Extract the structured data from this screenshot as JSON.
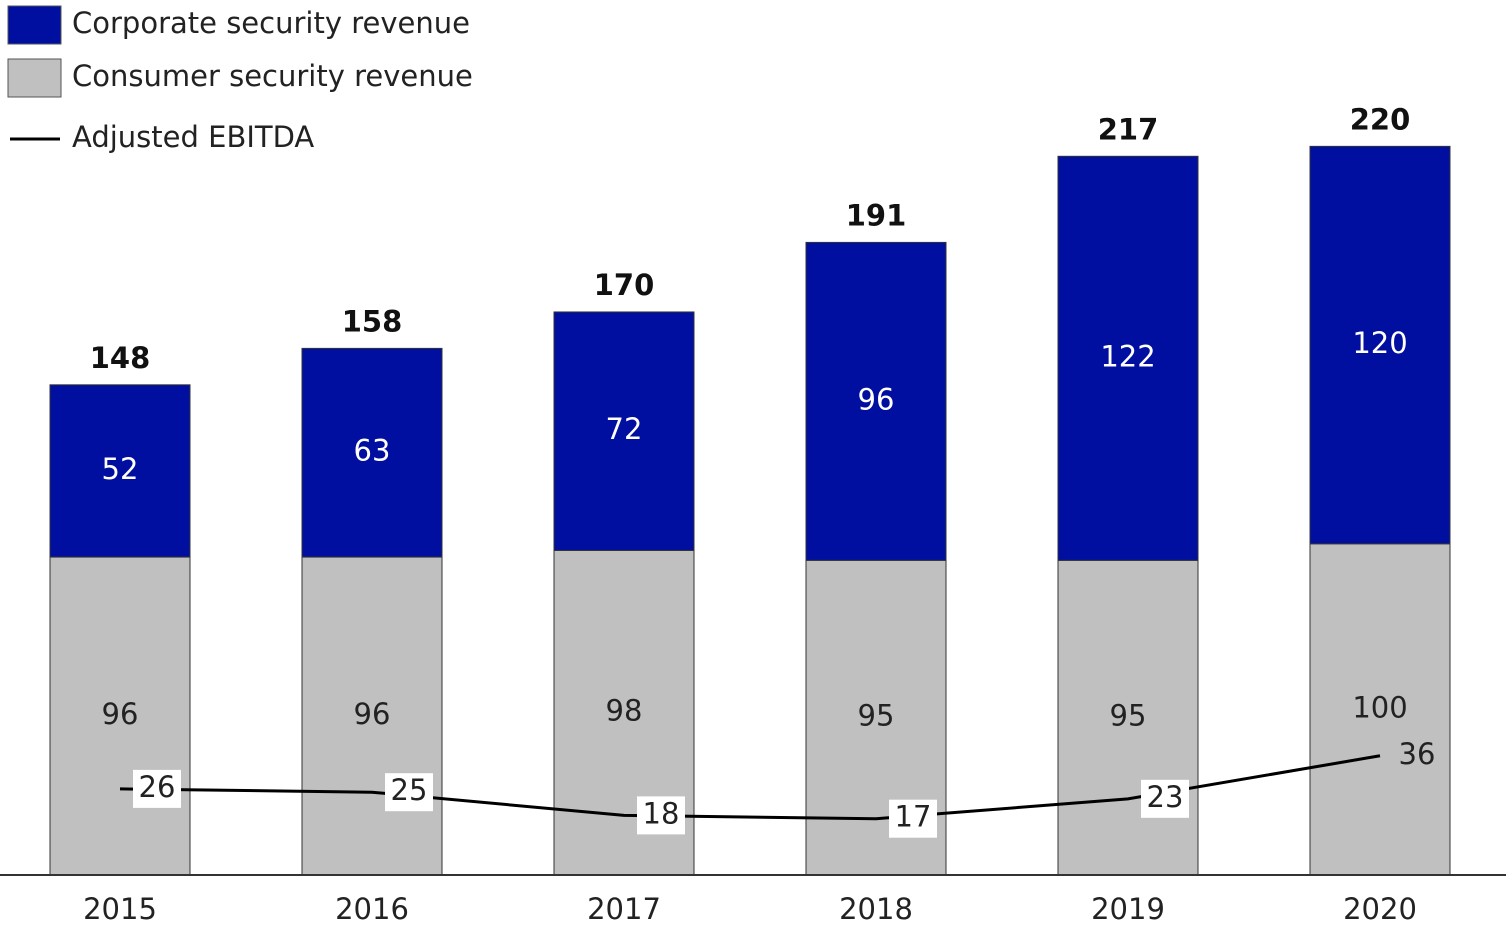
{
  "chart_data": {
    "type": "stacked-bar-line",
    "categories": [
      "2015",
      "2016",
      "2017",
      "2018",
      "2019",
      "2020"
    ],
    "series": [
      {
        "name": "Consumer security revenue",
        "color": "#c0c0c0",
        "values": [
          96,
          96,
          98,
          95,
          95,
          100
        ]
      },
      {
        "name": "Corporate security revenue",
        "color": "#000f9f",
        "values": [
          52,
          63,
          72,
          96,
          122,
          120
        ]
      },
      {
        "name": "Adjusted EBITDA",
        "color": "#000000",
        "type": "line",
        "values": [
          26,
          25,
          18,
          17,
          23,
          36
        ]
      }
    ],
    "totals": [
      148,
      158,
      170,
      191,
      217,
      220
    ],
    "ylim": [
      0,
      250
    ]
  }
}
